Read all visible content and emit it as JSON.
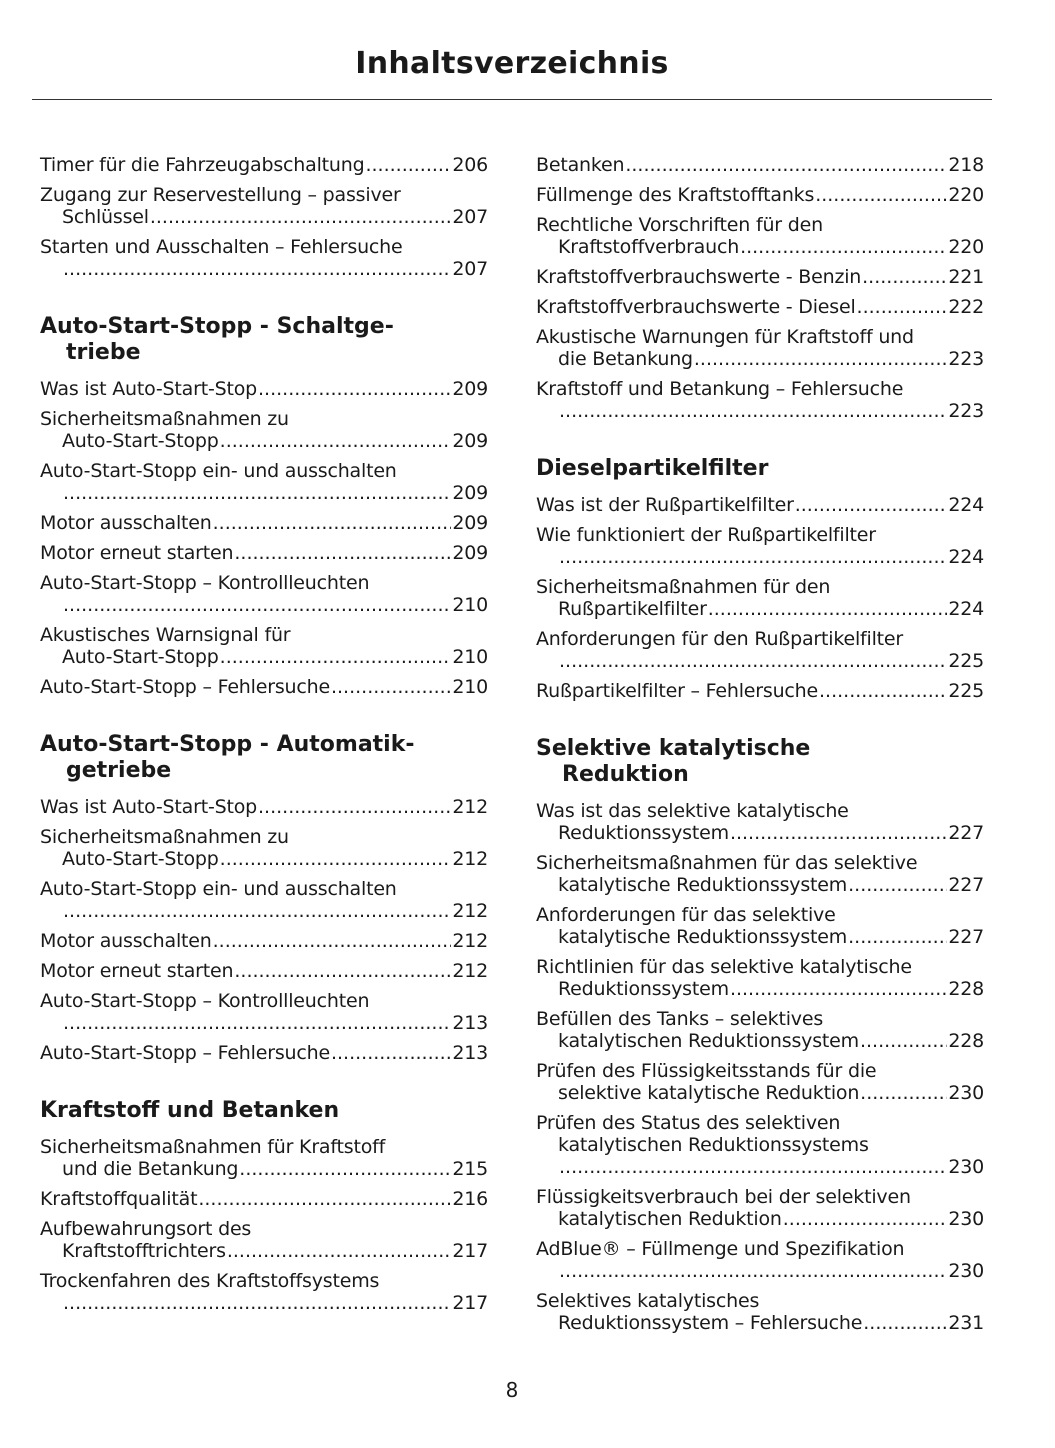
{
  "title": "Inhaltsverzeichnis",
  "page_number": "8",
  "columns": [
    [
      {
        "type": "entry",
        "lines": [
          "Timer für die Fahrzeugabschaltung"
        ],
        "page": "206"
      },
      {
        "type": "entry",
        "lines": [
          "Zugang zur Reservestellung – passiver",
          "Schlüssel"
        ],
        "page": "207"
      },
      {
        "type": "entry",
        "lines": [
          "Starten und Ausschalten – Fehlersuche",
          ""
        ],
        "page": "207"
      },
      {
        "type": "heading",
        "lines": [
          "Auto-Start-Stopp - Schaltge-",
          "triebe"
        ]
      },
      {
        "type": "entry",
        "lines": [
          "Was ist Auto-Start-Stop"
        ],
        "page": "209"
      },
      {
        "type": "entry",
        "lines": [
          "Sicherheitsmaßnahmen zu",
          "Auto-Start-Stopp"
        ],
        "page": "209"
      },
      {
        "type": "entry",
        "lines": [
          "Auto-Start-Stopp ein- und ausschalten",
          ""
        ],
        "page": "209"
      },
      {
        "type": "entry",
        "lines": [
          "Motor ausschalten"
        ],
        "page": "209"
      },
      {
        "type": "entry",
        "lines": [
          "Motor erneut starten"
        ],
        "page": "209"
      },
      {
        "type": "entry",
        "lines": [
          "Auto-Start-Stopp – Kontrollleuchten",
          ""
        ],
        "page": "210"
      },
      {
        "type": "entry",
        "lines": [
          "Akustisches Warnsignal für",
          "Auto-Start-Stopp"
        ],
        "page": "210"
      },
      {
        "type": "entry",
        "lines": [
          "Auto-Start-Stopp – Fehlersuche"
        ],
        "page": "210"
      },
      {
        "type": "heading",
        "lines": [
          "Auto-Start-Stopp - Automatik-",
          "getriebe"
        ]
      },
      {
        "type": "entry",
        "lines": [
          "Was ist Auto-Start-Stop"
        ],
        "page": "212"
      },
      {
        "type": "entry",
        "lines": [
          "Sicherheitsmaßnahmen zu",
          "Auto-Start-Stopp"
        ],
        "page": "212"
      },
      {
        "type": "entry",
        "lines": [
          "Auto-Start-Stopp ein- und ausschalten",
          ""
        ],
        "page": "212"
      },
      {
        "type": "entry",
        "lines": [
          "Motor ausschalten"
        ],
        "page": "212"
      },
      {
        "type": "entry",
        "lines": [
          "Motor erneut starten"
        ],
        "page": "212"
      },
      {
        "type": "entry",
        "lines": [
          "Auto-Start-Stopp – Kontrollleuchten",
          ""
        ],
        "page": "213"
      },
      {
        "type": "entry",
        "lines": [
          "Auto-Start-Stopp – Fehlersuche"
        ],
        "page": "213"
      },
      {
        "type": "heading",
        "lines": [
          "Kraftstoff und Betanken"
        ]
      },
      {
        "type": "entry",
        "lines": [
          "Sicherheitsmaßnahmen für Kraftstoff",
          "und die Betankung"
        ],
        "page": "215"
      },
      {
        "type": "entry",
        "lines": [
          "Kraftstoffqualität"
        ],
        "page": "216"
      },
      {
        "type": "entry",
        "lines": [
          "Aufbewahrungsort des",
          "Kraftstofftrichters"
        ],
        "page": "217"
      },
      {
        "type": "entry",
        "lines": [
          "Trockenfahren des Kraftstoffsystems",
          ""
        ],
        "page": "217"
      }
    ],
    [
      {
        "type": "entry",
        "lines": [
          "Betanken"
        ],
        "page": "218"
      },
      {
        "type": "entry",
        "lines": [
          "Füllmenge des Kraftstofftanks"
        ],
        "page": "220"
      },
      {
        "type": "entry",
        "lines": [
          "Rechtliche Vorschriften für den",
          "Kraftstoffverbrauch"
        ],
        "page": "220"
      },
      {
        "type": "entry",
        "lines": [
          "Kraftstoffverbrauchswerte - Benzin"
        ],
        "page": "221"
      },
      {
        "type": "entry",
        "lines": [
          "Kraftstoffverbrauchswerte - Diesel"
        ],
        "page": "222"
      },
      {
        "type": "entry",
        "lines": [
          "Akustische Warnungen für Kraftstoff und",
          "die Betankung"
        ],
        "page": "223"
      },
      {
        "type": "entry",
        "lines": [
          "Kraftstoff und Betankung – Fehlersuche",
          ""
        ],
        "page": "223"
      },
      {
        "type": "heading",
        "lines": [
          "Dieselpartikelfilter"
        ]
      },
      {
        "type": "entry",
        "lines": [
          "Was ist der Rußpartikelfilter"
        ],
        "page": "224"
      },
      {
        "type": "entry",
        "lines": [
          "Wie funktioniert der Rußpartikelfilter",
          ""
        ],
        "page": "224"
      },
      {
        "type": "entry",
        "lines": [
          "Sicherheitsmaßnahmen für den",
          "Rußpartikelfilter"
        ],
        "page": "224"
      },
      {
        "type": "entry",
        "lines": [
          "Anforderungen für den Rußpartikelfilter",
          ""
        ],
        "page": "225"
      },
      {
        "type": "entry",
        "lines": [
          "Rußpartikelfilter – Fehlersuche"
        ],
        "page": "225"
      },
      {
        "type": "heading",
        "lines": [
          "Selektive katalytische",
          "Reduktion"
        ]
      },
      {
        "type": "entry",
        "lines": [
          "Was ist das selektive katalytische",
          "Reduktionssystem"
        ],
        "page": "227"
      },
      {
        "type": "entry",
        "lines": [
          "Sicherheitsmaßnahmen für das selektive",
          "katalytische Reduktionssystem"
        ],
        "page": "227"
      },
      {
        "type": "entry",
        "lines": [
          "Anforderungen für das selektive",
          "katalytische Reduktionssystem"
        ],
        "page": "227"
      },
      {
        "type": "entry",
        "lines": [
          "Richtlinien für das selektive katalytische",
          "Reduktionssystem"
        ],
        "page": "228"
      },
      {
        "type": "entry",
        "lines": [
          "Befüllen des Tanks – selektives",
          "katalytischen Reduktionssystem"
        ],
        "page": "228"
      },
      {
        "type": "entry",
        "lines": [
          "Prüfen des Flüssigkeitsstands für die",
          "selektive katalytische Reduktion"
        ],
        "page": "230"
      },
      {
        "type": "entry",
        "lines": [
          "Prüfen des Status des selektiven",
          "katalytischen Reduktionssystems",
          ""
        ],
        "page": "230"
      },
      {
        "type": "entry",
        "lines": [
          "Flüssigkeitsverbrauch bei der selektiven",
          "katalytischen Reduktion"
        ],
        "page": "230"
      },
      {
        "type": "entry",
        "lines": [
          "AdBlue® – Füllmenge und Spezifikation",
          ""
        ],
        "page": "230"
      },
      {
        "type": "entry",
        "lines": [
          "Selektives katalytisches",
          "Reduktionssystem – Fehlersuche"
        ],
        "page": "231"
      }
    ]
  ]
}
